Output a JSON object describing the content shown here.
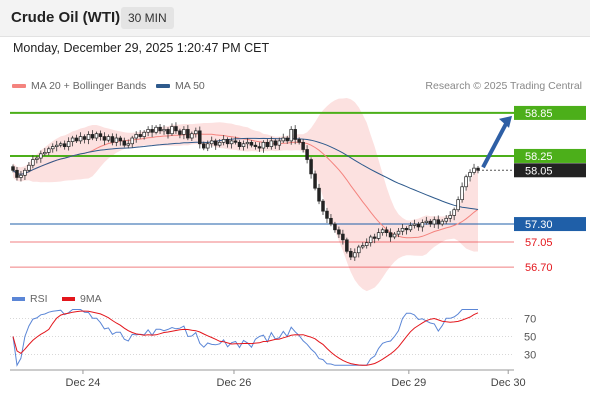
{
  "header": {
    "instrument": "Crude Oil (WTI)",
    "timeframe": "30 MIN"
  },
  "timestamp": "Monday, December 29, 2025 1:20:47 PM CET",
  "legend": {
    "ma20": {
      "label": "MA 20 + Bollinger Bands",
      "color": "#f4837e"
    },
    "ma50": {
      "label": "MA 50",
      "color": "#2e5a8c"
    }
  },
  "credit": "Research © 2025 Trading Central",
  "rsi_legend": {
    "rsi": {
      "label": "RSI",
      "color": "#5b86d6"
    },
    "ma9": {
      "label": "9MA",
      "color": "#e3161c"
    }
  },
  "chart_data": [
    {
      "type": "candlestick",
      "title": "Crude Oil (WTI)",
      "timeframe": "30 MIN",
      "x_ticks": [
        "Dec 24",
        "Dec 26",
        "Dec 29",
        "Dec 30"
      ],
      "ylim": [
        56.45,
        59.1
      ],
      "current_price": {
        "value": "58.05",
        "color": "#222222"
      },
      "levels": [
        {
          "value": "58.85",
          "kind": "resistance",
          "color": "#4caf1a"
        },
        {
          "value": "58.25",
          "kind": "resistance",
          "color": "#4caf1a"
        },
        {
          "value": "57.30",
          "kind": "pivot",
          "color": "#1f5fa8"
        },
        {
          "value": "57.05",
          "kind": "support",
          "color": "#e3161c"
        },
        {
          "value": "56.70",
          "kind": "support",
          "color": "#e3161c"
        }
      ],
      "forecast_arrow": {
        "from": 58.05,
        "to": 58.85,
        "color": "#2e5fa5"
      },
      "close_series": [
        58.05,
        57.95,
        57.98,
        58.05,
        58.12,
        58.2,
        58.22,
        58.28,
        58.3,
        58.35,
        58.38,
        58.4,
        58.42,
        58.38,
        58.45,
        58.5,
        58.46,
        58.52,
        58.48,
        58.55,
        58.5,
        58.56,
        58.52,
        58.47,
        58.52,
        58.44,
        58.5,
        58.46,
        58.4,
        58.42,
        58.5,
        58.55,
        58.52,
        58.58,
        58.62,
        58.58,
        58.65,
        58.6,
        58.62,
        58.56,
        58.66,
        58.6,
        58.55,
        58.62,
        58.5,
        58.56,
        58.6,
        58.42,
        58.36,
        58.42,
        58.46,
        58.4,
        58.44,
        58.48,
        58.42,
        58.46,
        58.44,
        58.38,
        58.42,
        58.44,
        58.4,
        58.38,
        58.36,
        58.44,
        58.38,
        58.46,
        58.4,
        58.46,
        58.5,
        58.46,
        58.62,
        58.48,
        58.44,
        58.34,
        58.2,
        58.0,
        57.8,
        57.62,
        57.48,
        57.38,
        57.3,
        57.22,
        57.16,
        57.08,
        56.92,
        56.84,
        56.9,
        56.98,
        57.0,
        57.04,
        57.12,
        57.1,
        57.18,
        57.22,
        57.18,
        57.12,
        57.16,
        57.2,
        57.24,
        57.22,
        57.28,
        57.3,
        57.26,
        57.32,
        57.34,
        57.3,
        57.36,
        57.3,
        57.34,
        57.38,
        57.42,
        57.5,
        57.64,
        57.82,
        57.96,
        58.02,
        58.08,
        58.05
      ]
    },
    {
      "type": "line",
      "title": "RSI",
      "series": [
        {
          "name": "RSI",
          "color": "#5b86d6"
        },
        {
          "name": "9MA",
          "color": "#e3161c"
        }
      ],
      "y_ticks": [
        "70",
        "50",
        "30"
      ],
      "ylim": [
        15,
        85
      ]
    }
  ]
}
